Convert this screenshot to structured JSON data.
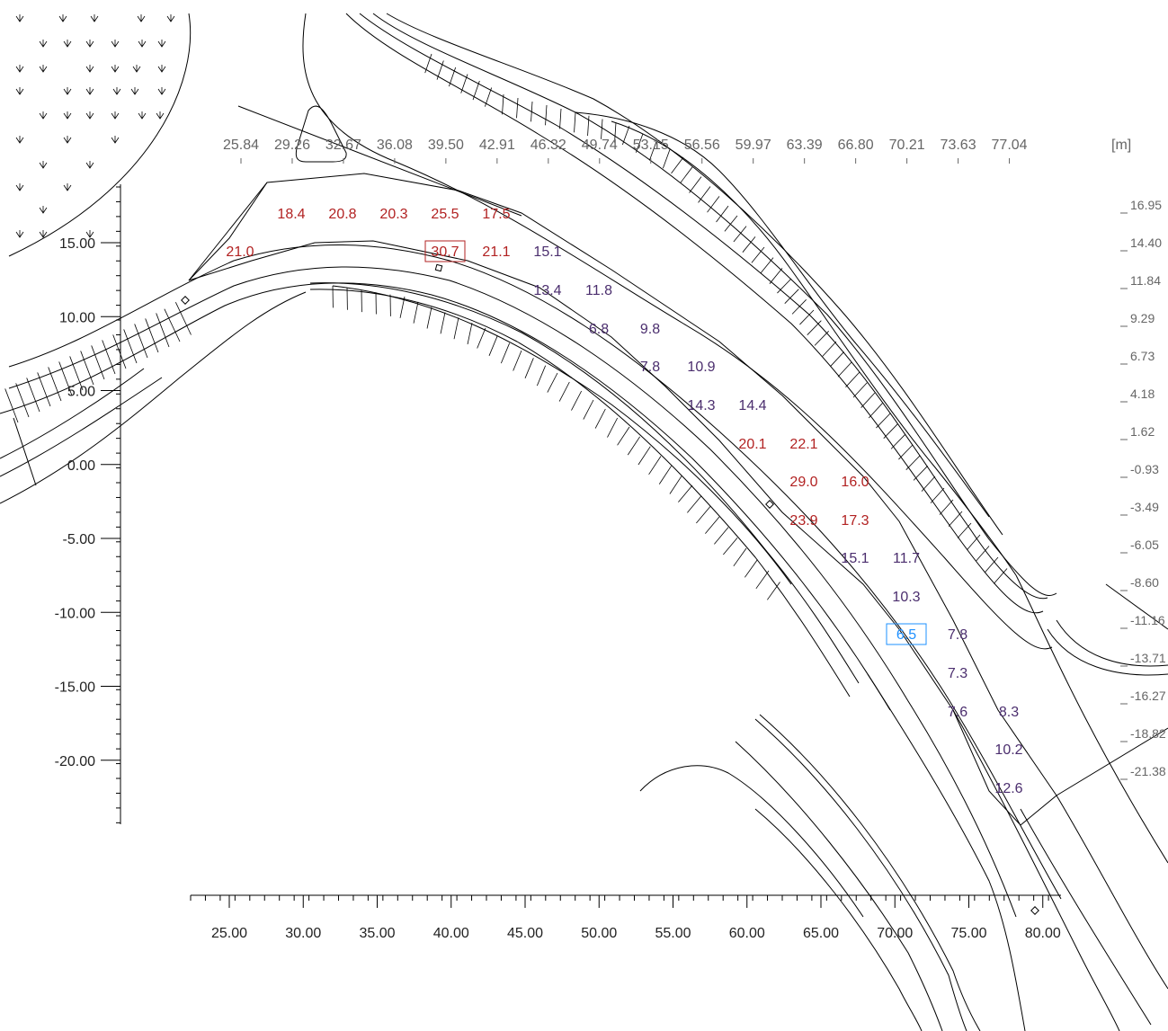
{
  "unit_label": "[m]",
  "colors": {
    "high": "#b22222",
    "low": "#4b2e6e",
    "selected": "#1e90ff",
    "axis": "#000000",
    "top_ticks": "#666666"
  },
  "top_axis_labels": [
    "25.84",
    "29.26",
    "32.67",
    "36.08",
    "39.50",
    "42.91",
    "46.32",
    "49.74",
    "53.15",
    "56.56",
    "59.97",
    "63.39",
    "66.80",
    "70.21",
    "73.63",
    "77.04"
  ],
  "right_axis_labels": [
    "16.95",
    "14.40",
    "11.84",
    "9.29",
    "6.73",
    "4.18",
    "1.62",
    "-0.93",
    "-3.49",
    "-6.05",
    "-8.60",
    "-11.16",
    "-13.71",
    "-16.27",
    "-18.82",
    "-21.38"
  ],
  "left_axis_labels": [
    "15.00",
    "10.00",
    "5.00",
    "0.00",
    "-5.00",
    "-10.00",
    "-15.00",
    "-20.00"
  ],
  "bottom_axis_labels": [
    "25.00",
    "30.00",
    "35.00",
    "40.00",
    "45.00",
    "50.00",
    "55.00",
    "60.00",
    "65.00",
    "70.00",
    "75.00",
    "80.00"
  ],
  "grid_values": [
    {
      "text": "18.4",
      "level": "high"
    },
    {
      "text": "20.8",
      "level": "high"
    },
    {
      "text": "20.3",
      "level": "high"
    },
    {
      "text": "25.5",
      "level": "high"
    },
    {
      "text": "17.5",
      "level": "high"
    },
    {
      "text": "21.0",
      "level": "high"
    },
    {
      "text": "30.7",
      "level": "high",
      "boxed": "max"
    },
    {
      "text": "21.1",
      "level": "high"
    },
    {
      "text": "15.1",
      "level": "low"
    },
    {
      "text": "13.4",
      "level": "low"
    },
    {
      "text": "11.8",
      "level": "low"
    },
    {
      "text": "6.8",
      "level": "low"
    },
    {
      "text": "9.8",
      "level": "low"
    },
    {
      "text": "7.8",
      "level": "low"
    },
    {
      "text": "10.9",
      "level": "low"
    },
    {
      "text": "14.3",
      "level": "low"
    },
    {
      "text": "14.4",
      "level": "low"
    },
    {
      "text": "20.1",
      "level": "high"
    },
    {
      "text": "22.1",
      "level": "high"
    },
    {
      "text": "29.0",
      "level": "high"
    },
    {
      "text": "16.0",
      "level": "high"
    },
    {
      "text": "23.9",
      "level": "high"
    },
    {
      "text": "17.3",
      "level": "high"
    },
    {
      "text": "15.1",
      "level": "low"
    },
    {
      "text": "11.7",
      "level": "low"
    },
    {
      "text": "10.3",
      "level": "low"
    },
    {
      "text": "6.5",
      "level": "low",
      "boxed": "min"
    },
    {
      "text": "7.8",
      "level": "low"
    },
    {
      "text": "7.3",
      "level": "low"
    },
    {
      "text": "7.6",
      "level": "low"
    },
    {
      "text": "8.3",
      "level": "low"
    },
    {
      "text": "10.2",
      "level": "low"
    },
    {
      "text": "12.6",
      "level": "low"
    }
  ]
}
